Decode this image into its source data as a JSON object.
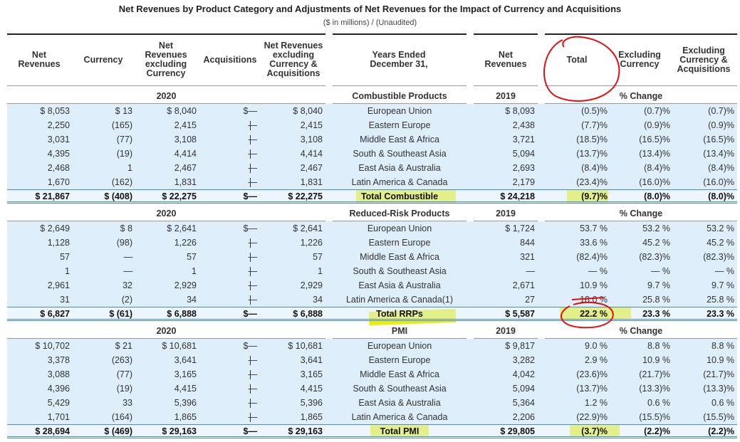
{
  "title": "Net Revenues by Product Category and Adjustments of Net Revenues for the Impact of Currency and Acquisitions",
  "subtitle": "($ in millions) / (Unaudited)",
  "table": {
    "headers": [
      "Net Revenues",
      "Currency",
      "Net Revenues excluding Currency",
      "Acquisitions",
      "Net Revenues excluding Currency & Acquisitions",
      "Years Ended December 31,",
      "Net Revenues",
      "Total",
      "Excluding Currency",
      "Excluding Currency & Acquisitions"
    ],
    "sections": [
      {
        "year": "2020",
        "category": "Combustible Products",
        "prior_year": "2019",
        "change_label": "% Change",
        "rows": [
          [
            "$ 8,053",
            "$ 13",
            "$ 8,040",
            "$—",
            "$ 8,040",
            "European Union",
            "$ 8,093",
            "(0.5)%",
            "(0.7)%",
            "(0.7)%"
          ],
          [
            "2,250",
            "(165)",
            "2,415",
            "—",
            "2,415",
            "Eastern Europe",
            "2,438",
            "(7.7)%",
            "(0.9)%",
            "(0.9)%"
          ],
          [
            "3,031",
            "(77)",
            "3,108",
            "—",
            "3,108",
            "Middle East & Africa",
            "3,721",
            "(18.5)%",
            "(16.5)%",
            "(16.5)%"
          ],
          [
            "4,395",
            "(19)",
            "4,414",
            "—",
            "4,414",
            "South & Southeast Asia",
            "5,094",
            "(13.7)%",
            "(13.4)%",
            "(13.4)%"
          ],
          [
            "2,468",
            "1",
            "2,467",
            "—",
            "2,467",
            "East Asia & Australia",
            "2,693",
            "(8.4)%",
            "(8.4)%",
            "(8.4)%"
          ],
          [
            "1,670",
            "(162)",
            "1,831",
            "—",
            "1,831",
            "Latin America & Canada",
            "2,179",
            "(23.4)%",
            "(16.0)%",
            "(16.0)%"
          ]
        ],
        "total": [
          "$ 21,867",
          "$ (408)",
          "$ 22,275",
          "$—",
          "$ 22,275",
          "Total Combustible",
          "$ 24,218",
          "(9.7)%",
          "(8.0)%",
          "(8.0)%"
        ]
      },
      {
        "year": "2020",
        "category": "Reduced-Risk Products",
        "prior_year": "2019",
        "change_label": "% Change",
        "rows": [
          [
            "$ 2,649",
            "$ 8",
            "$ 2,641",
            "$—",
            "$ 2,641",
            "European Union",
            "$ 1,724",
            "53.7 %",
            "53.2 %",
            "53.2 %"
          ],
          [
            "1,128",
            "(98)",
            "1,226",
            "—",
            "1,226",
            "Eastern Europe",
            "844",
            "33.6 %",
            "45.2 %",
            "45.2 %"
          ],
          [
            "57",
            "—",
            "57",
            "—",
            "57",
            "Middle East & Africa",
            "321",
            "(82.4)%",
            "(82.3)%",
            "(82.3)%"
          ],
          [
            "1",
            "—",
            "1",
            "—",
            "1",
            "South & Southeast Asia",
            "—",
            "— %",
            "— %",
            "— %"
          ],
          [
            "2,961",
            "32",
            "2,929",
            "—",
            "2,929",
            "East Asia & Australia",
            "2,671",
            "10.9 %",
            "9.7 %",
            "9.7 %"
          ],
          [
            "31",
            "(2)",
            "34",
            "—",
            "34",
            "Latin America & Canada(1)",
            "27",
            "18.0 %",
            "25.8 %",
            "25.8 %"
          ]
        ],
        "total": [
          "$ 6,827",
          "$ (61)",
          "$ 6,888",
          "$—",
          "$ 6,888",
          "Total RRPs",
          "$ 5,587",
          "22.2 %",
          "23.3 %",
          "23.3 %"
        ]
      },
      {
        "year": "2020",
        "category": "PMI",
        "prior_year": "2019",
        "change_label": "% Change",
        "rows": [
          [
            "$ 10,702",
            "$ 21",
            "$ 10,681",
            "$—",
            "$ 10,681",
            "European Union",
            "$ 9,817",
            "9.0 %",
            "8.8 %",
            "8.8 %"
          ],
          [
            "3,378",
            "(263)",
            "3,641",
            "—",
            "3,641",
            "Eastern Europe",
            "3,282",
            "2.9 %",
            "10.9 %",
            "10.9 %"
          ],
          [
            "3,088",
            "(77)",
            "3,165",
            "—",
            "3,165",
            "Middle East & Africa",
            "4,042",
            "(23.6)%",
            "(21.7)%",
            "(21.7)%"
          ],
          [
            "4,396",
            "(19)",
            "4,415",
            "—",
            "4,415",
            "South & Southeast Asia",
            "5,094",
            "(13.7)%",
            "(13.3)%",
            "(13.3)%"
          ],
          [
            "5,429",
            "33",
            "5,396",
            "—",
            "5,396",
            "East Asia & Australia",
            "5,364",
            "1.2 %",
            "0.6 %",
            "0.6 %"
          ],
          [
            "1,701",
            "(164)",
            "1,865",
            "—",
            "1,865",
            "Latin America & Canada",
            "2,206",
            "(22.9)%",
            "(15.5)%",
            "(15.5)%"
          ]
        ],
        "total": [
          "$ 28,694",
          "$ (469)",
          "$ 29,163",
          "$—",
          "$ 29,163",
          "Total PMI",
          "$ 29,805",
          "(3.7)%",
          "(2.2)%",
          "(2.2)%"
        ]
      }
    ]
  }
}
